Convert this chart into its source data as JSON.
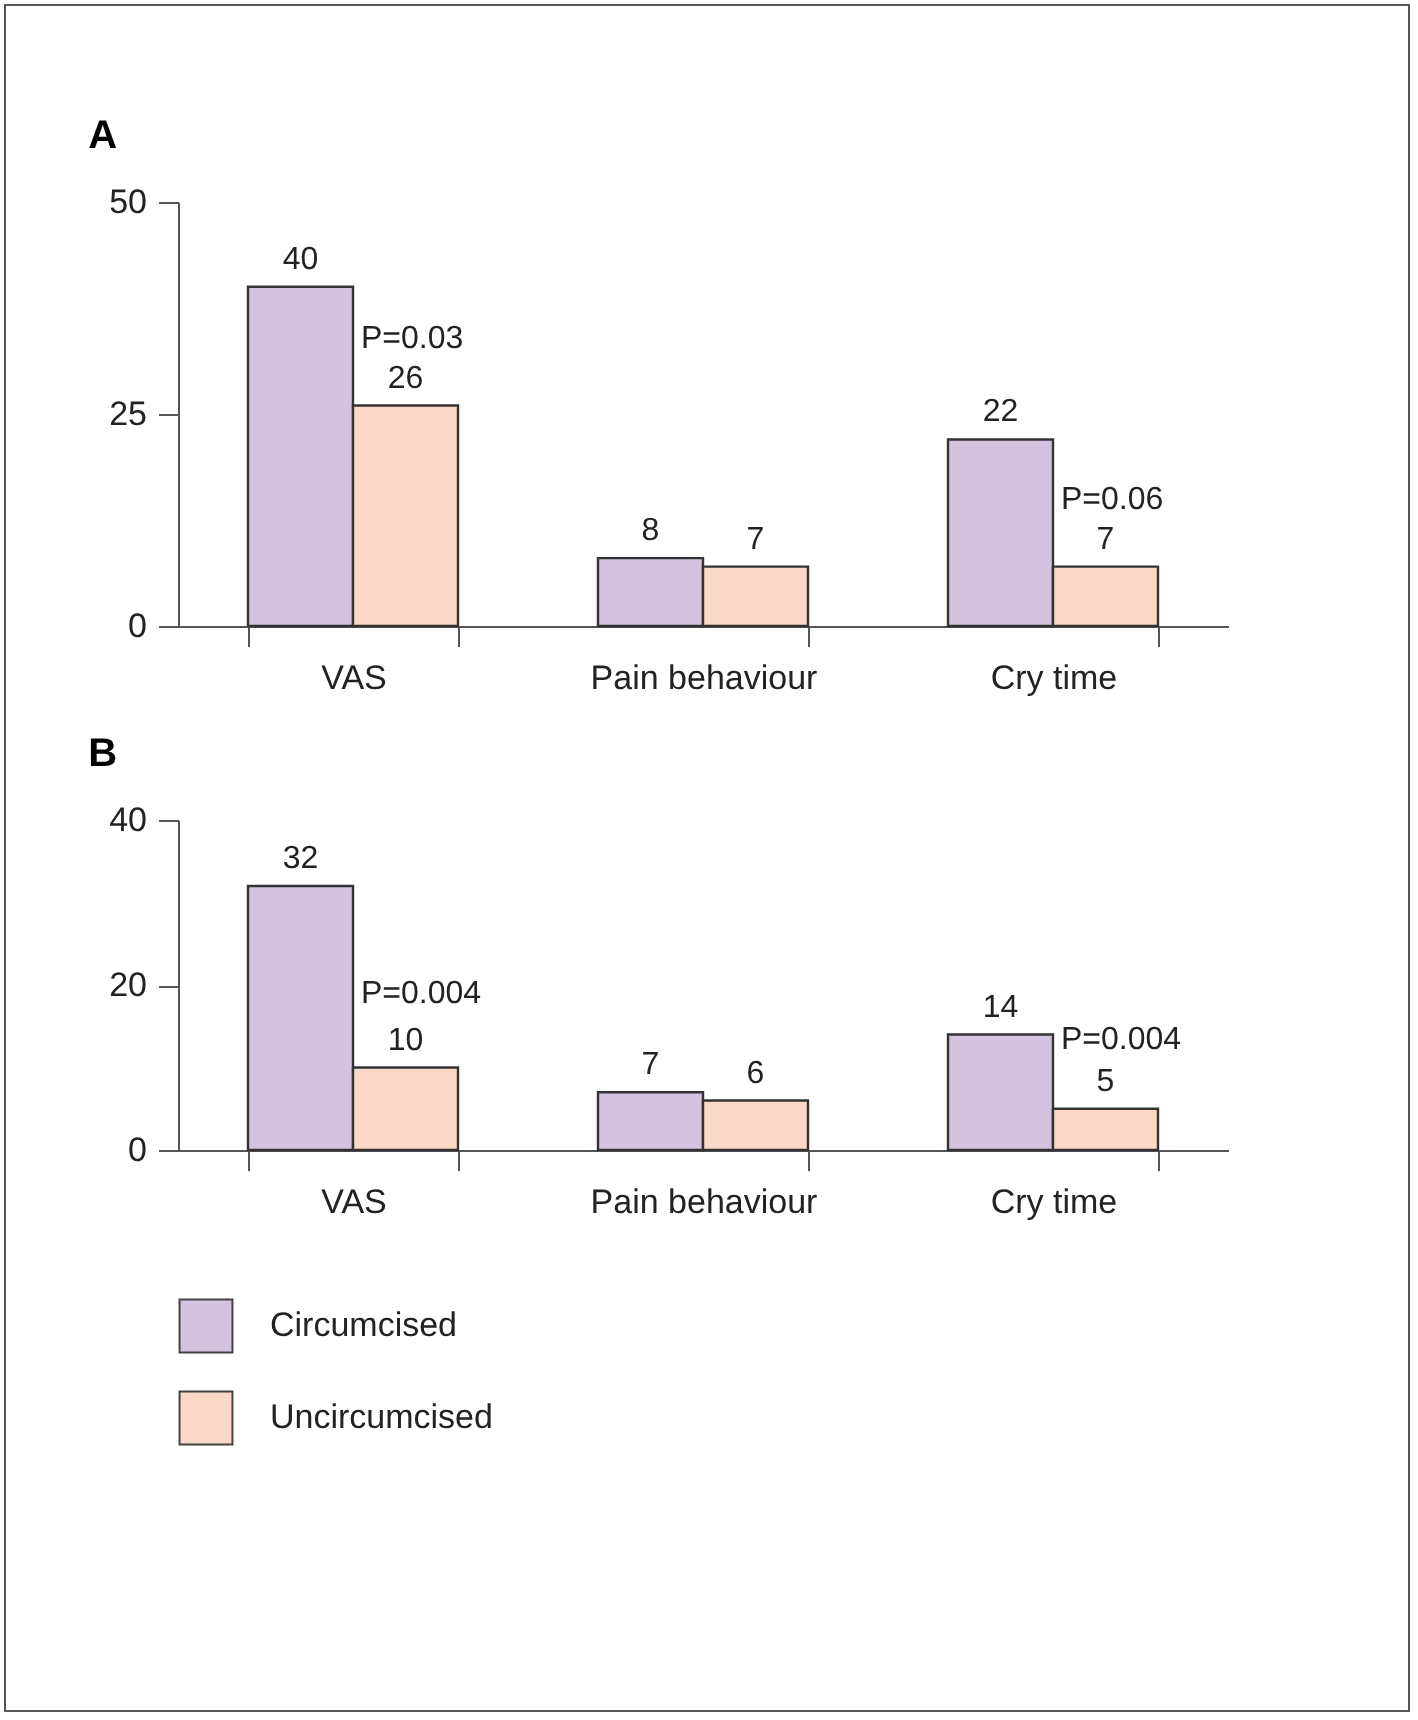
{
  "chart_data": [
    {
      "type": "bar",
      "title": "A",
      "categories": [
        "VAS",
        "Pain behaviour",
        "Cry time"
      ],
      "series": [
        {
          "color": "#d3c3de",
          "values": [
            40,
            8,
            22
          ]
        },
        {
          "color": "#fad7c6",
          "values": [
            26,
            7,
            7
          ]
        }
      ],
      "ylim": [
        0,
        50
      ],
      "yticks": [
        0,
        25,
        50
      ],
      "grid": false,
      "legend": false,
      "data_labels": true,
      "annotations": [
        {
          "text": "P=0.03",
          "x": "VAS",
          "y": 34
        },
        {
          "text": "P=0.06",
          "x": "Cry time",
          "y": 15
        }
      ]
    },
    {
      "type": "bar",
      "title": "B",
      "categories": [
        "VAS",
        "Pain behaviour",
        "Cry time"
      ],
      "series": [
        {
          "name": "Circumcised",
          "color": "#d3c3de",
          "values": [
            32,
            7,
            14
          ]
        },
        {
          "name": "Uncircumcised",
          "color": "#fad7c6",
          "values": [
            10,
            6,
            5
          ]
        }
      ],
      "ylim": [
        0,
        40
      ],
      "yticks": [
        0,
        20,
        40
      ],
      "grid": false,
      "legend": "bottom",
      "data_labels": true,
      "annotations": [
        {
          "text": "P=0.004",
          "x": "VAS",
          "y": 19
        },
        {
          "text": "P=0.004",
          "x": "Cry time",
          "y": 13.5
        }
      ]
    }
  ]
}
